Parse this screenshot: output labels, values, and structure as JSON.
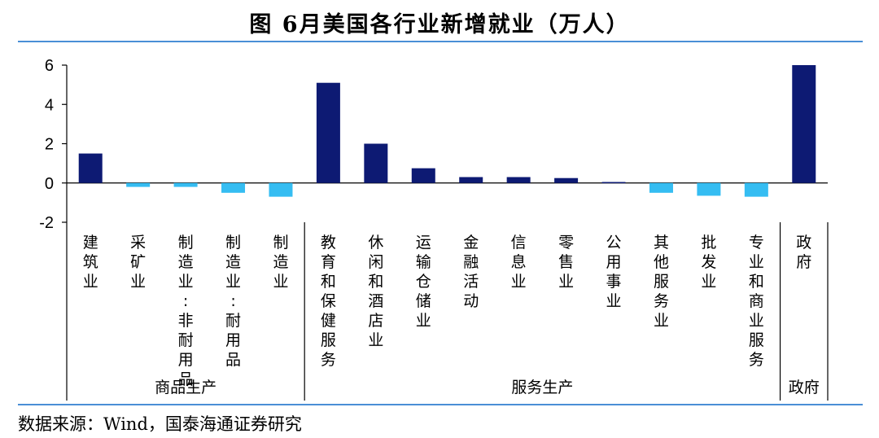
{
  "title": "图 6月美国各行业新增就业（万人）",
  "source": "数据来源：Wind，国泰海通证券研究",
  "colors": {
    "positive": "#0d1a73",
    "negative": "#35bdf2",
    "rule": "#4a8fd6",
    "axis": "#000000"
  },
  "chart_data": {
    "type": "bar",
    "ylim": [
      -2,
      6
    ],
    "yticks": [
      6,
      4,
      2,
      0,
      -2
    ],
    "categories": [
      "建筑业",
      "采矿业",
      "制造业:非耐用品",
      "制造业:耐用品",
      "制造业",
      "教育和保健服务",
      "休闲和酒店业",
      "运输仓储业",
      "金融活动",
      "信息业",
      "零售业",
      "公用事业",
      "其他服务业",
      "批发业",
      "专业和商业服务",
      "政府"
    ],
    "values": [
      1.5,
      -0.2,
      -0.2,
      -0.5,
      -0.7,
      5.1,
      2.0,
      0.75,
      0.3,
      0.3,
      0.25,
      0.05,
      -0.5,
      -0.65,
      -0.7,
      6.0
    ],
    "groups": [
      {
        "label": "商品生产",
        "count": 5
      },
      {
        "label": "服务生产",
        "count": 10
      },
      {
        "label": "政府",
        "count": 1
      }
    ]
  }
}
